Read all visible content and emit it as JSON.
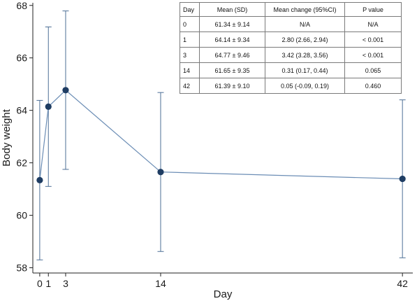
{
  "chart_data": {
    "type": "line",
    "xlabel": "Day",
    "ylabel": "Body weight",
    "x_ticks": [
      0,
      1,
      3,
      14,
      42
    ],
    "y_ticks": [
      58,
      60,
      62,
      64,
      66,
      68
    ],
    "xlim": [
      -0.8,
      43.2
    ],
    "ylim": [
      57.8,
      68.1
    ],
    "series": [
      {
        "x": [
          0,
          1,
          3,
          14,
          42
        ],
        "y": [
          61.34,
          64.14,
          64.77,
          61.65,
          61.39
        ],
        "error_low": [
          58.3,
          61.1,
          61.75,
          58.62,
          58.38
        ],
        "error_high": [
          64.38,
          67.18,
          67.79,
          64.68,
          64.4
        ]
      }
    ],
    "colors": {
      "line": "#6b8db5",
      "marker": "#1f3d63",
      "error_bar": "#4d6f96",
      "axis": "#222222"
    },
    "table": {
      "headers": [
        "Day",
        "Mean (SD)",
        "Mean change (95%CI)",
        "P value"
      ],
      "rows": [
        [
          "0",
          "61.34 ± 9.14",
          "N/A",
          "N/A"
        ],
        [
          "1",
          "64.14 ± 9.34",
          "2.80 (2.66, 2.94)",
          "< 0.001"
        ],
        [
          "3",
          "64.77 ± 9.46",
          "3.42 (3.28, 3.56)",
          "< 0.001"
        ],
        [
          "14",
          "61.65 ± 9.35",
          "0.31 (0.17, 0.44)",
          "0.065"
        ],
        [
          "42",
          "61.39 ± 9.10",
          "0.05 (-0.09, 0.19)",
          "0.460"
        ]
      ]
    }
  }
}
